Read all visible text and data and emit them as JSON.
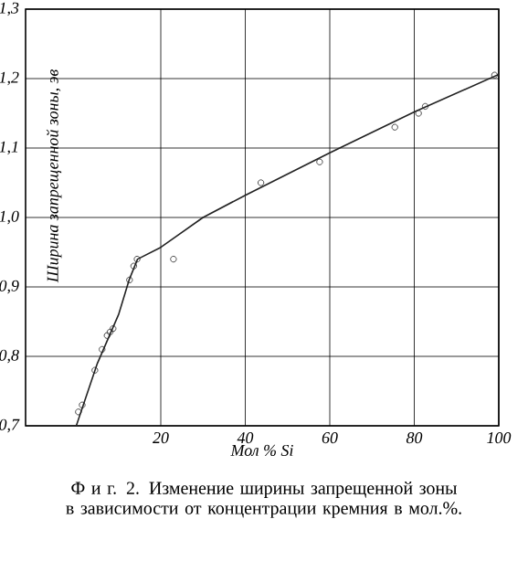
{
  "chart_data": {
    "type": "scatter",
    "xlabel": "Мол % Si",
    "ylabel": "Ширина запрещенной зоны, эв",
    "annotations": [
      "Ф и г. 2. Изменение ширины запрещенной зоны в зависимости от концентрации кремния в мол.%."
    ],
    "xlim": [
      -12,
      100
    ],
    "ylim": [
      0.7,
      1.3
    ],
    "xticks": [
      20,
      40,
      60,
      80,
      100
    ],
    "yticks": [
      {
        "value": 0.7,
        "label": "0,7"
      },
      {
        "value": 0.8,
        "label": "0,8"
      },
      {
        "value": 0.9,
        "label": "0,9"
      },
      {
        "value": 1.0,
        "label": "1,0"
      },
      {
        "value": 1.1,
        "label": "1,1"
      },
      {
        "value": 1.2,
        "label": "1,2"
      },
      {
        "value": 1.3,
        "label": "1,3"
      }
    ],
    "grid": true,
    "series": [
      {
        "color": "#222222",
        "marker": "circle",
        "x": [
          0.5,
          1.4,
          4.4,
          6.1,
          7.3,
          8.0,
          8.7,
          12.6,
          13.6,
          14.4,
          23,
          43.7,
          57.6,
          75.4,
          81,
          82.6,
          99
        ],
        "values": [
          0.72,
          0.73,
          0.78,
          0.81,
          0.83,
          0.835,
          0.84,
          0.91,
          0.93,
          0.94,
          0.94,
          1.05,
          1.08,
          1.13,
          1.15,
          1.16,
          1.205
        ]
      },
      {
        "type": "line",
        "color": "#222222",
        "x": [
          0,
          5,
          10,
          12.5,
          14.5,
          20,
          30,
          40,
          60,
          80,
          100
        ],
        "values": [
          0.7,
          0.79,
          0.86,
          0.91,
          0.94,
          0.957,
          1.0,
          1.032,
          1.093,
          1.152,
          1.206
        ]
      }
    ]
  }
}
